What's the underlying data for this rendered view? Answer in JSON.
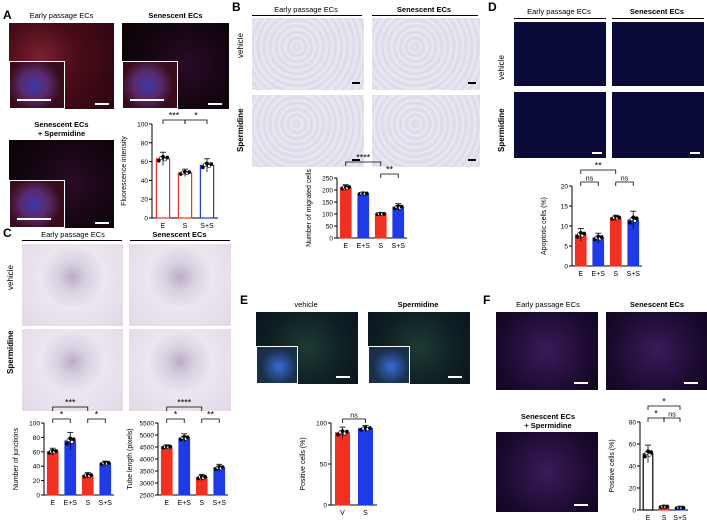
{
  "panels": {
    "A": {
      "letter": "A",
      "titles": {
        "early": "Early passage ECs",
        "senescent": "Senescent ECs",
        "spermidine_line1": "Senescent ECs",
        "spermidine_line2": "+ Spermidine"
      }
    },
    "B": {
      "letter": "B",
      "titles": {
        "early": "Early passage ECs",
        "senescent": "Senescent ECs",
        "vehicle": "vehicle",
        "spermidine": "Spermidine"
      }
    },
    "C": {
      "letter": "C",
      "titles": {
        "early": "Early passage ECs",
        "senescent": "Senescent ECs",
        "vehicle": "vehicle",
        "spermidine": "Spermidine"
      }
    },
    "D": {
      "letter": "D",
      "titles": {
        "early": "Early passage ECs",
        "senescent": "Senescent ECs",
        "vehicle": "vehicle",
        "spermidine": "Spermidine"
      }
    },
    "E": {
      "letter": "E",
      "titles": {
        "vehicle": "vehicle",
        "spermidine": "Spermidine"
      }
    },
    "F": {
      "letter": "F",
      "titles": {
        "early": "Early passage ECs",
        "senescent": "Senescent ECs",
        "spermidine_line1": "Senescent ECs",
        "spermidine_line2": "+ Spermidine"
      }
    }
  },
  "colors": {
    "E": "#f03020",
    "E+S": "#1f3be8",
    "S": "#f03020",
    "S+S": "#1f3be8",
    "white": "#ffffff"
  },
  "chart_data": [
    {
      "id": "A",
      "type": "bar",
      "ylabel": "Fluorescence intensity",
      "categories": [
        "E",
        "S",
        "S+S"
      ],
      "values": [
        63,
        48,
        56
      ],
      "errors": [
        7,
        4,
        7
      ],
      "ylim": [
        0,
        100
      ],
      "yticks": [
        0,
        20,
        40,
        60,
        80,
        100
      ],
      "bar_colors": [
        "#f03020",
        "#f03020",
        "#1f3be8"
      ],
      "bar_fill": "white",
      "significance": [
        {
          "from": 0,
          "to": 1,
          "label": "***"
        },
        {
          "from": 1,
          "to": 2,
          "label": "*"
        }
      ]
    },
    {
      "id": "B",
      "type": "bar",
      "ylabel": "Number of migrated cells",
      "categories": [
        "E",
        "E+S",
        "S",
        "S+S"
      ],
      "values": [
        210,
        185,
        100,
        128
      ],
      "errors": [
        12,
        5,
        4,
        15
      ],
      "ylim": [
        0,
        250
      ],
      "yticks": [
        0,
        50,
        100,
        150,
        200,
        250
      ],
      "bar_colors": [
        "#f03020",
        "#1f3be8",
        "#f03020",
        "#1f3be8"
      ],
      "significance": [
        {
          "from": 0,
          "to": 2,
          "label": "****"
        },
        {
          "from": 2,
          "to": 3,
          "label": "**"
        }
      ]
    },
    {
      "id": "C1",
      "type": "bar",
      "ylabel": "Number of junctions",
      "categories": [
        "E",
        "E+S",
        "S",
        "S+S"
      ],
      "values": [
        60,
        75,
        27,
        44
      ],
      "errors": [
        5,
        12,
        4,
        3
      ],
      "ylim": [
        0,
        100
      ],
      "yticks": [
        0,
        20,
        40,
        60,
        80,
        100
      ],
      "bar_colors": [
        "#f03020",
        "#1f3be8",
        "#f03020",
        "#1f3be8"
      ],
      "significance": [
        {
          "from": 0,
          "to": 1,
          "label": "*"
        },
        {
          "from": 2,
          "to": 3,
          "label": "*"
        },
        {
          "from": 0,
          "to": 2,
          "label": "***"
        }
      ]
    },
    {
      "id": "C2",
      "type": "bar",
      "ylabel": "Tube length (pixels)",
      "categories": [
        "E",
        "E+S",
        "S",
        "S+S"
      ],
      "values": [
        4500,
        4870,
        3230,
        3630
      ],
      "errors": [
        90,
        180,
        130,
        150
      ],
      "ylim": [
        2500,
        5500
      ],
      "yticks": [
        2500,
        3000,
        3500,
        4000,
        4500,
        5000,
        5500
      ],
      "bar_colors": [
        "#f03020",
        "#1f3be8",
        "#f03020",
        "#1f3be8"
      ],
      "significance": [
        {
          "from": 0,
          "to": 1,
          "label": "*"
        },
        {
          "from": 2,
          "to": 3,
          "label": "**"
        },
        {
          "from": 0,
          "to": 2,
          "label": "****"
        }
      ]
    },
    {
      "id": "D",
      "type": "bar",
      "ylabel": "Apoptotic cells (%)",
      "categories": [
        "E",
        "E+S",
        "S",
        "S+S"
      ],
      "values": [
        7.8,
        7.0,
        12.0,
        11.5
      ],
      "errors": [
        1.6,
        1.2,
        0.7,
        2.2
      ],
      "ylim": [
        0,
        20
      ],
      "yticks": [
        0,
        5,
        10,
        15,
        20
      ],
      "bar_colors": [
        "#f03020",
        "#1f3be8",
        "#f03020",
        "#1f3be8"
      ],
      "significance": [
        {
          "from": 0,
          "to": 1,
          "label": "ns"
        },
        {
          "from": 2,
          "to": 3,
          "label": "ns"
        },
        {
          "from": 0,
          "to": 2,
          "label": "**"
        }
      ]
    },
    {
      "id": "E",
      "type": "bar",
      "ylabel": "Positive cells (%)",
      "categories": [
        "V",
        "S"
      ],
      "values": [
        88,
        93
      ],
      "errors": [
        7,
        4
      ],
      "ylim": [
        0,
        100
      ],
      "yticks": [
        0,
        50,
        100
      ],
      "bar_colors": [
        "#f03020",
        "#1f3be8"
      ],
      "significance": [
        {
          "from": 0,
          "to": 1,
          "label": "ns"
        }
      ]
    },
    {
      "id": "F",
      "type": "bar",
      "ylabel": "Positive cells (%)",
      "categories": [
        "E",
        "S",
        "S+S"
      ],
      "values": [
        51,
        3,
        2
      ],
      "errors": [
        8,
        1,
        1
      ],
      "ylim": [
        0,
        80
      ],
      "yticks": [
        0,
        20,
        40,
        60,
        80
      ],
      "bar_colors": [
        "#ffffff",
        "#f03020",
        "#1f3be8"
      ],
      "significance": [
        {
          "from": 0,
          "to": 1,
          "label": "*"
        },
        {
          "from": 1,
          "to": 2,
          "label": "ns"
        },
        {
          "from": 0,
          "to": 2,
          "label": "*"
        }
      ]
    }
  ]
}
